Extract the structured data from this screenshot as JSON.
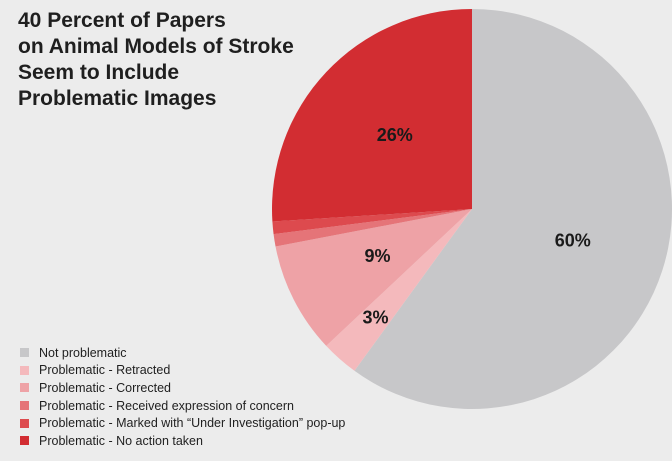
{
  "chart_data": {
    "type": "pie",
    "title_lines": [
      "40 Percent of Papers",
      "on Animal Models of Stroke",
      "Seem to Include",
      "Problematic Images"
    ],
    "slices": [
      {
        "label": "Not problematic",
        "value": 60,
        "color": "#c7c7c9",
        "text": "60%"
      },
      {
        "label": "Problematic - Retracted",
        "value": 3,
        "color": "#f4b9bc",
        "text": "3%"
      },
      {
        "label": "Problematic - Corrected",
        "value": 9,
        "color": "#eea2a6",
        "text": "9%"
      },
      {
        "label": "Problematic - Received expression of concern",
        "value": 1,
        "color": "#e57478",
        "text": ""
      },
      {
        "label": "Problematic - Marked with “Under Investigation” pop-up",
        "value": 1,
        "color": "#dd4a4e",
        "text": ""
      },
      {
        "label": "Problematic - No action taken",
        "value": 26,
        "color": "#d22d32",
        "text": "26%"
      }
    ],
    "start_angle_deg": 0,
    "direction": "clockwise",
    "legend_position": "bottom-left"
  }
}
